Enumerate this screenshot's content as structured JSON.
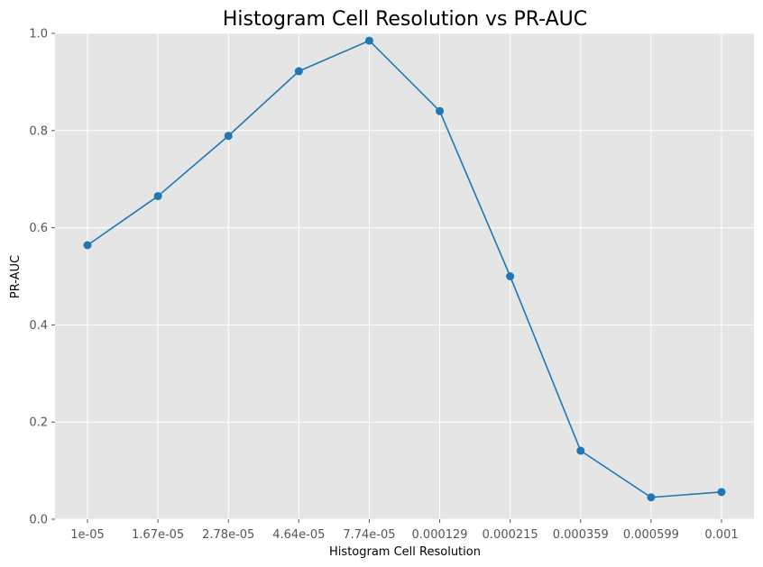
{
  "chart_data": {
    "type": "line",
    "title": "Histogram Cell Resolution vs PR-AUC",
    "xlabel": "Histogram Cell Resolution",
    "ylabel": "PR-AUC",
    "categories": [
      "1e-05",
      "1.67e-05",
      "2.78e-05",
      "4.64e-05",
      "7.74e-05",
      "0.000129",
      "0.000215",
      "0.000359",
      "0.000599",
      "0.001"
    ],
    "series": [
      {
        "values": [
          0.564,
          0.665,
          0.789,
          0.922,
          0.985,
          0.84,
          0.5,
          0.141,
          0.045,
          0.056
        ]
      }
    ],
    "ylim": [
      0.0,
      1.0
    ],
    "yticks": [
      "0.0",
      "0.2",
      "0.4",
      "0.6",
      "0.8",
      "1.0"
    ],
    "grid": true,
    "colors": {
      "line": "#1f77b4",
      "plot_background": "#e5e5e5",
      "grid": "#ffffff",
      "tick_text": "#555555"
    }
  }
}
